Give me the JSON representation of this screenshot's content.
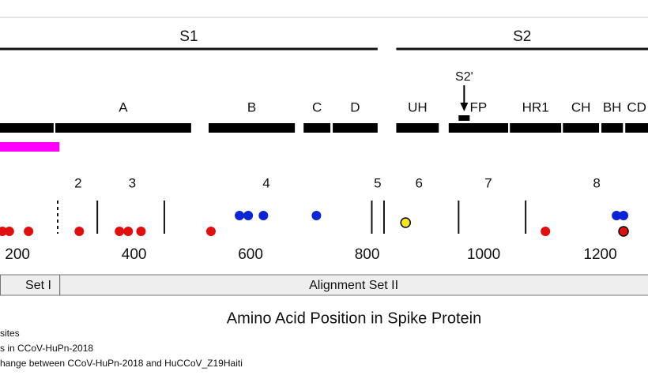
{
  "chart_data": {
    "type": "domain-map",
    "xlabel": "Amino Acid Position in Spike Protein",
    "xlim": [
      170,
      1282
    ],
    "xticks": [
      200,
      400,
      600,
      800,
      1000,
      1200
    ],
    "subunits": [
      {
        "label": "S1",
        "range": [
          170,
          818
        ]
      },
      {
        "label": "S2",
        "range": [
          850,
          1282
        ]
      }
    ],
    "domains": [
      {
        "label": null,
        "range": [
          170,
          262
        ]
      },
      {
        "label": "A",
        "range": [
          265,
          498
        ]
      },
      {
        "label": "B",
        "range": [
          528,
          676
        ]
      },
      {
        "label": "C",
        "range": [
          691,
          737
        ]
      },
      {
        "label": "D",
        "range": [
          741,
          818
        ]
      },
      {
        "label": "UH",
        "range": [
          850,
          923
        ]
      },
      {
        "label": "FP",
        "range": [
          940,
          1042
        ]
      },
      {
        "label": "HR1",
        "range": [
          1045,
          1133
        ]
      },
      {
        "label": "CH",
        "range": [
          1136,
          1198
        ]
      },
      {
        "label": "BH",
        "range": [
          1202,
          1239
        ]
      },
      {
        "label": "CD",
        "range": [
          1243,
          1282
        ]
      }
    ],
    "cleavage_site": {
      "label": "S2'",
      "range": [
        957,
        976
      ]
    },
    "highlight": {
      "color": "#ff00ff",
      "range": [
        170,
        272
      ]
    },
    "regions": {
      "labels": [
        "2",
        "3",
        "4",
        "5",
        "6",
        "7",
        "8"
      ],
      "positions": [
        304,
        397,
        627,
        818,
        889,
        1008,
        1194
      ]
    },
    "separators": {
      "dotted": [
        269
      ],
      "solid": [
        337,
        452,
        808,
        829,
        957,
        1072
      ]
    },
    "series": [
      {
        "color": "#0b24d6",
        "outline": false,
        "values": [
          581,
          596,
          622,
          713,
          1228,
          1240
        ]
      },
      {
        "color": "#e01010",
        "outline": false,
        "values": [
          174,
          186,
          219,
          306,
          375,
          390,
          412,
          532,
          1106
        ]
      },
      {
        "color": "#f5e619",
        "outline": true,
        "values": [
          866
        ]
      },
      {
        "color": "#e01010",
        "outline": true,
        "values": [
          1240
        ]
      }
    ],
    "alignment_sets": [
      {
        "label": "Set I",
        "range": [
          170,
          269
        ]
      },
      {
        "label": "Alignment Set II",
        "range": [
          272,
          1282
        ]
      }
    ],
    "legend": [
      "sites",
      "s in CCoV-HuPn-2018",
      "hange between CCoV-HuPn-2018 and HuCCoV_Z19Haiti"
    ]
  }
}
